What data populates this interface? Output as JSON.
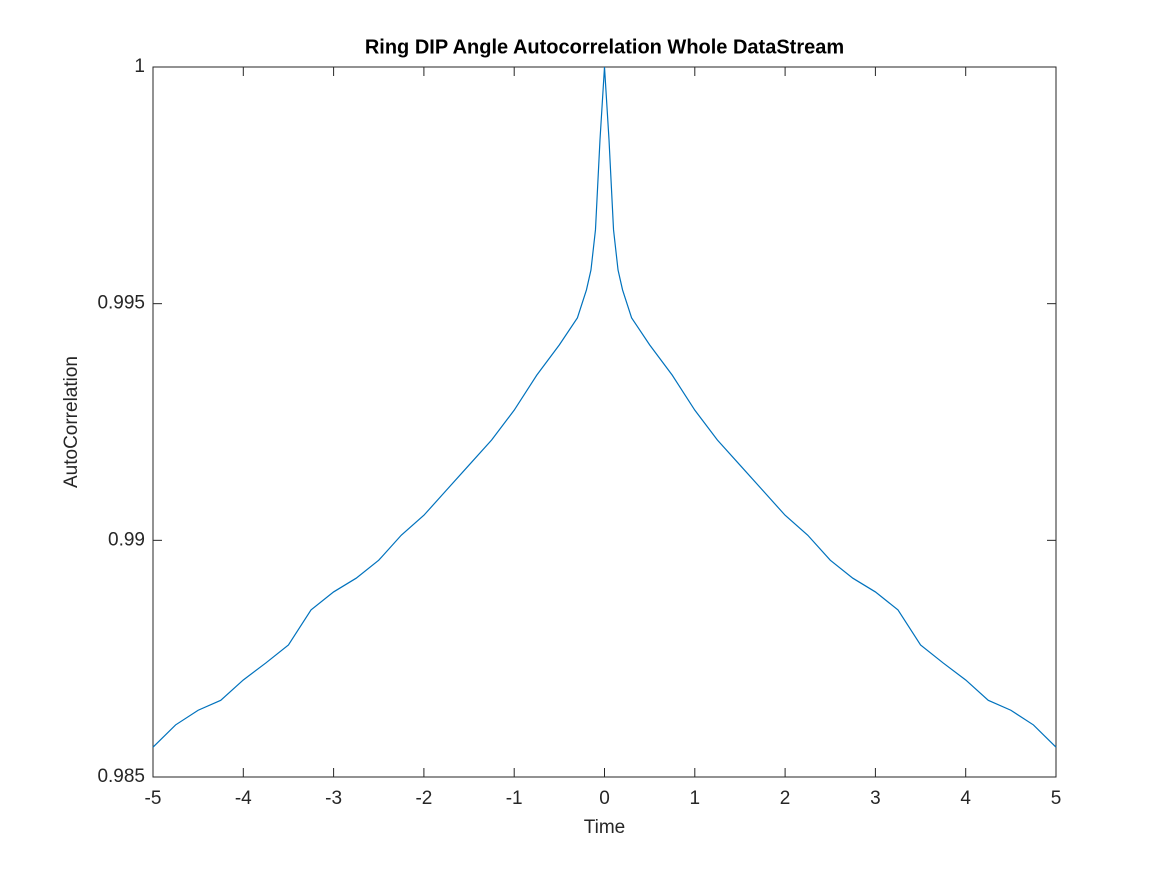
{
  "chart_data": {
    "type": "line",
    "title": "Ring DIP Angle Autocorrelation Whole DataStream",
    "x_label": "Time",
    "y_label": "AutoCorrelation",
    "x": [
      -5,
      -4.75,
      -4.5,
      -4.25,
      -4,
      -3.75,
      -3.5,
      -3.25,
      -3,
      -2.75,
      -2.5,
      -2.25,
      -2,
      -1.75,
      -1.5,
      -1.25,
      -1,
      -0.75,
      -0.5,
      -0.3,
      -0.2,
      -0.15,
      -0.1,
      -0.05,
      0,
      0.05,
      0.1,
      0.15,
      0.2,
      0.3,
      0.5,
      0.75,
      1,
      1.25,
      1.5,
      1.75,
      2,
      2.25,
      2.5,
      2.75,
      3,
      3.25,
      3.5,
      3.75,
      4,
      4.25,
      4.5,
      4.75,
      5
    ],
    "series": [
      {
        "color": "#0072bd",
        "values": [
          0.98563,
          0.9861,
          0.98641,
          0.98662,
          0.98705,
          0.98741,
          0.98779,
          0.98853,
          0.98891,
          0.9892,
          0.98958,
          0.99011,
          0.99053,
          0.99106,
          0.99159,
          0.99212,
          0.99275,
          0.99349,
          0.99413,
          0.9947,
          0.99529,
          0.99571,
          0.99656,
          0.99846,
          1.0,
          0.99846,
          0.99656,
          0.99571,
          0.99529,
          0.9947,
          0.99413,
          0.99349,
          0.99275,
          0.99212,
          0.99159,
          0.99106,
          0.99053,
          0.99011,
          0.98958,
          0.9892,
          0.98891,
          0.98853,
          0.98779,
          0.98741,
          0.98705,
          0.98662,
          0.98641,
          0.9861,
          0.98563
        ]
      }
    ],
    "xlim": [
      -5,
      5
    ],
    "ylim": [
      0.985,
      1
    ],
    "xticks": [
      -5,
      -4,
      -3,
      -2,
      -1,
      0,
      1,
      2,
      3,
      4,
      5
    ],
    "yticks": [
      0.985,
      0.99,
      0.995,
      1
    ],
    "grid": false
  }
}
